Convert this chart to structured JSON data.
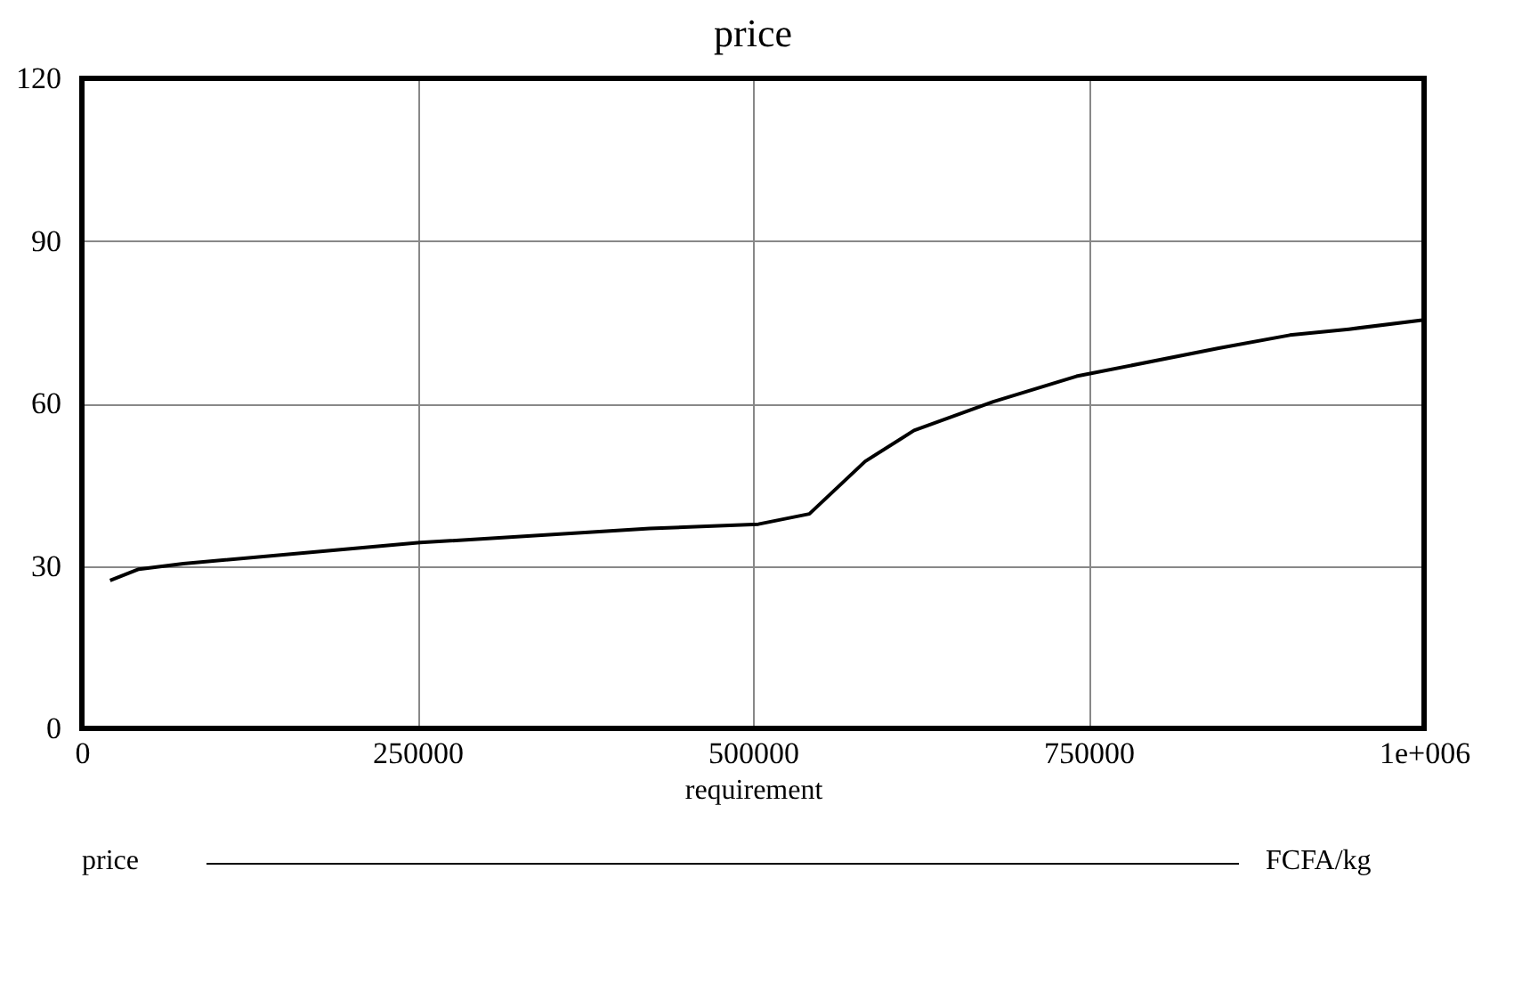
{
  "chart_data": {
    "type": "line",
    "title": "price",
    "xlabel": "requirement",
    "x": [
      21000,
      42400,
      75600,
      252000,
      423000,
      504000,
      542000,
      583600,
      620000,
      679000,
      741000,
      847000,
      900000,
      944000,
      1000000
    ],
    "series": [
      {
        "name": "price",
        "color": "#000000",
        "values": [
          27.3,
          29.4,
          30.4,
          34.3,
          36.9,
          37.7,
          39.6,
          49.3,
          55,
          60.3,
          65,
          70.2,
          72.6,
          73.7,
          75.4
        ]
      }
    ],
    "xlim": [
      0,
      1000000
    ],
    "xticks": [
      0,
      250000,
      500000,
      750000,
      {
        "value": 1000000,
        "label": "1e+006"
      }
    ],
    "ylim": [
      0,
      120
    ],
    "yticks": [
      0,
      30,
      60,
      90,
      120
    ],
    "grid": true,
    "legend": "bottom",
    "line_style": "solid",
    "marker": "none",
    "annotations": [
      "FCFA/kg"
    ]
  }
}
